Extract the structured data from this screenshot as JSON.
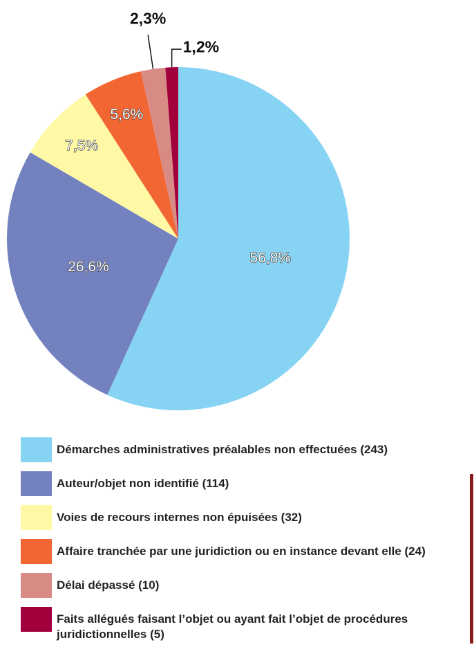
{
  "chart_data": {
    "type": "pie",
    "categories": [
      "Démarches administratives préalables non effectuées (243)",
      "Auteur/objet non identifié (114)",
      "Voies de recours internes non épuisées (32)",
      "Affaire tranchée par une juridiction ou en instance devant elle (24)",
      "Délai dépassé (10)",
      "Faits allégués faisant l’objet ou ayant fait l’objet de procédures juridictionnelles (5)"
    ],
    "values": [
      56.8,
      26.6,
      7.5,
      5.6,
      2.3,
      1.2
    ],
    "value_labels": [
      "56,8%",
      "26,6%",
      "7,5%",
      "5,6%",
      "2,3%",
      "1,2%"
    ],
    "colors": [
      "#87d3f3",
      "#7381bf",
      "#fff9a6",
      "#f26633",
      "#d88a84",
      "#a2003c"
    ]
  }
}
